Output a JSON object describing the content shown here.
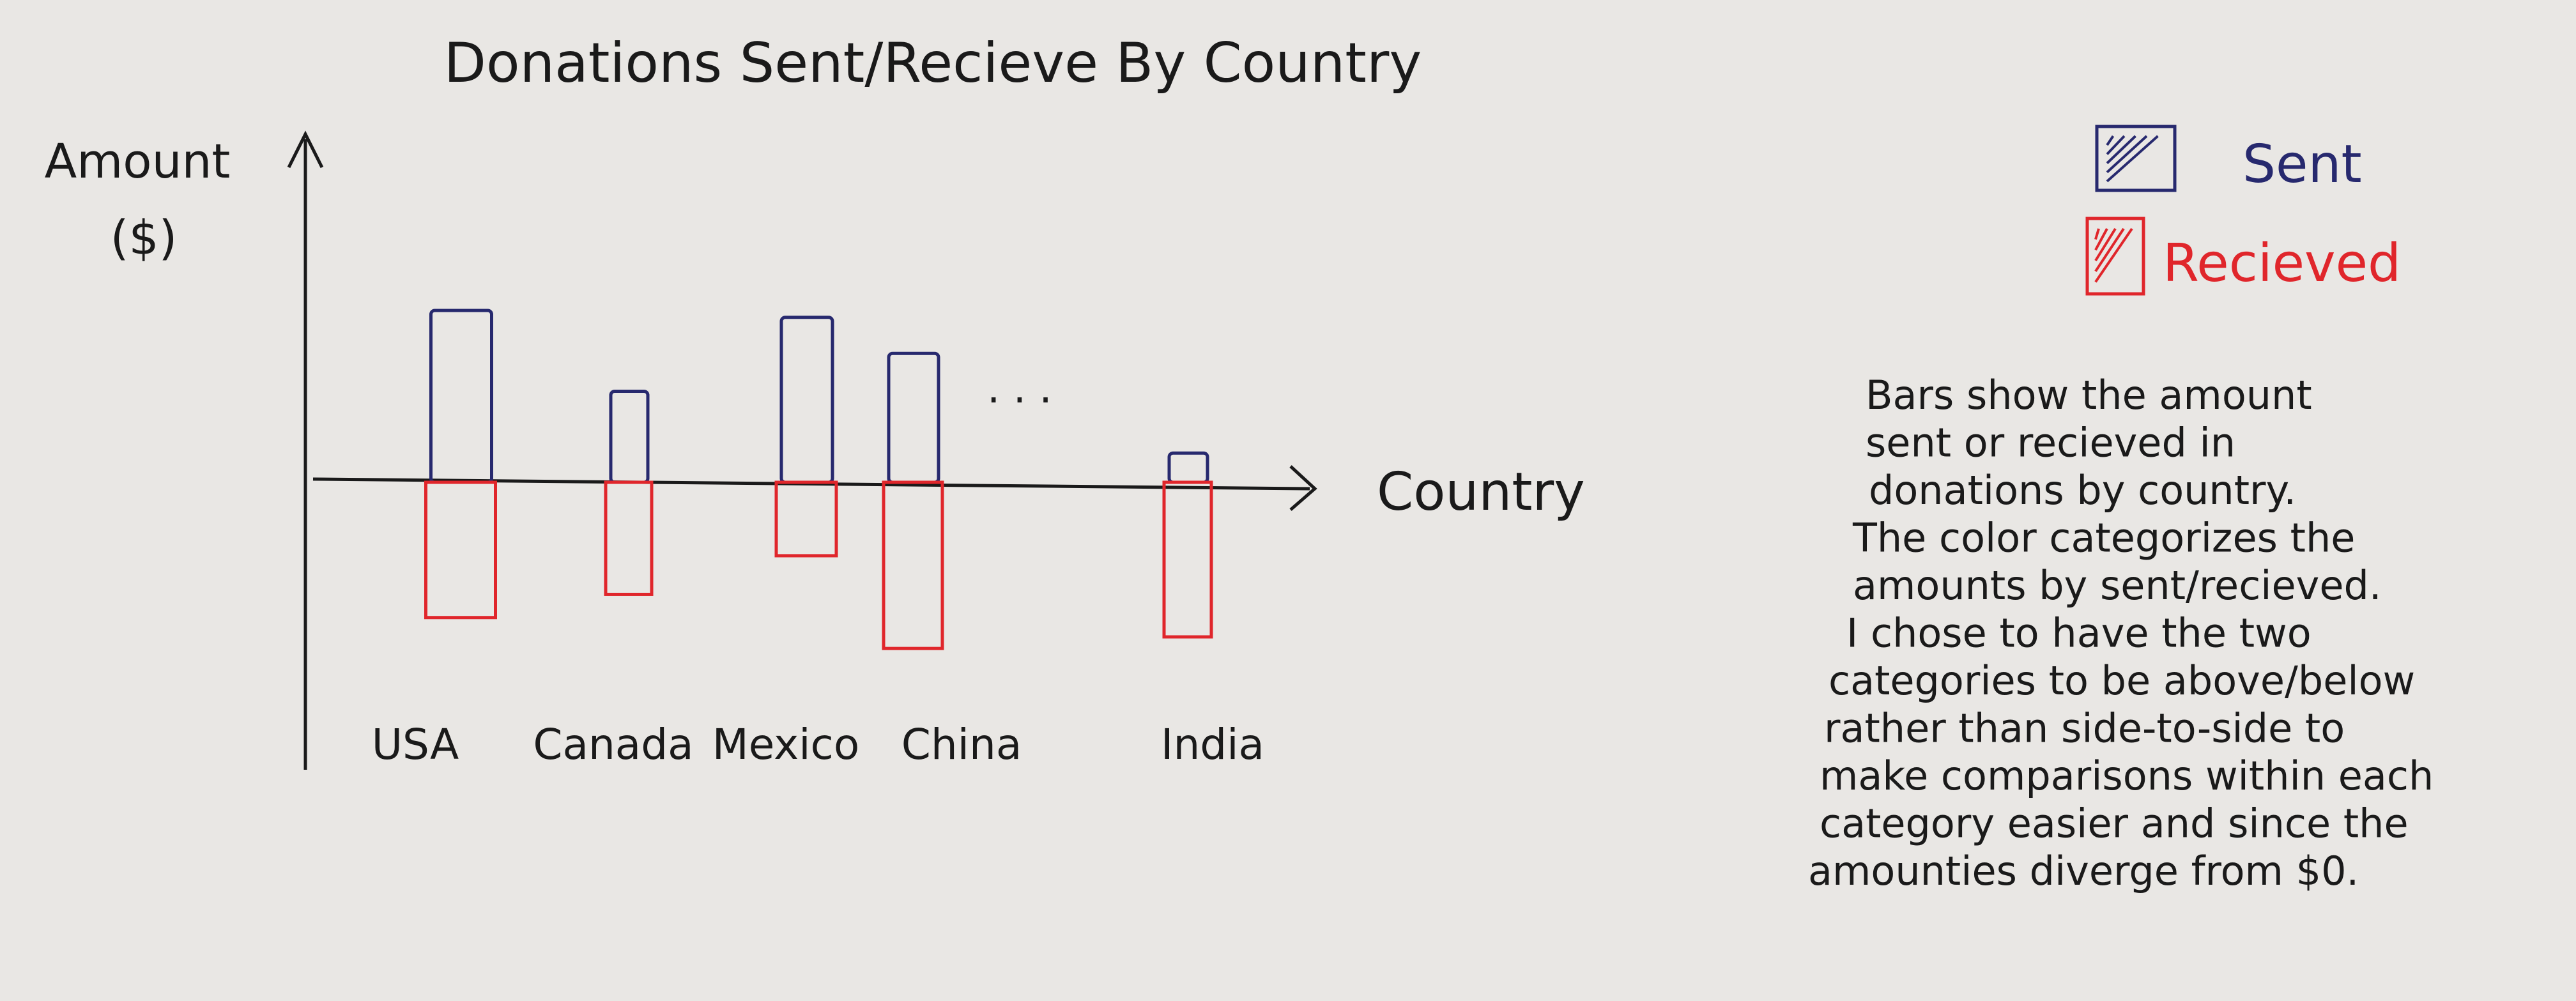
{
  "chart_data": {
    "type": "bar",
    "title": "Donations Sent/Recieve By Country",
    "xlabel": "Country",
    "ylabel_lines": [
      "Amount",
      "($)"
    ],
    "categories": [
      "USA",
      "Canada",
      "Mexico",
      "China",
      "India"
    ],
    "ellipsis": ". . .",
    "series": [
      {
        "name": "Sent",
        "values": [
          100,
          53,
          96,
          75,
          17
        ]
      },
      {
        "name": "Recieved",
        "values": [
          -70,
          -58,
          -38,
          -86,
          -80
        ]
      }
    ],
    "ylim": [
      -120,
      145
    ],
    "grid": false,
    "legend_position": "top-right",
    "colors": {
      "sent": "#27296e",
      "recieved": "#e0262b",
      "ink": "#1a1a1a"
    }
  },
  "note_lines": [
    "Bars show the amount",
    "sent or recieved in",
    "donations by country.",
    "The color categorizes the",
    "amounts by sent/recieved.",
    "I chose to have the two",
    "categories to be above/below",
    "rather than side-to-side to",
    "make comparisons within each",
    "category easier and since the",
    "amounties diverge from $0."
  ]
}
